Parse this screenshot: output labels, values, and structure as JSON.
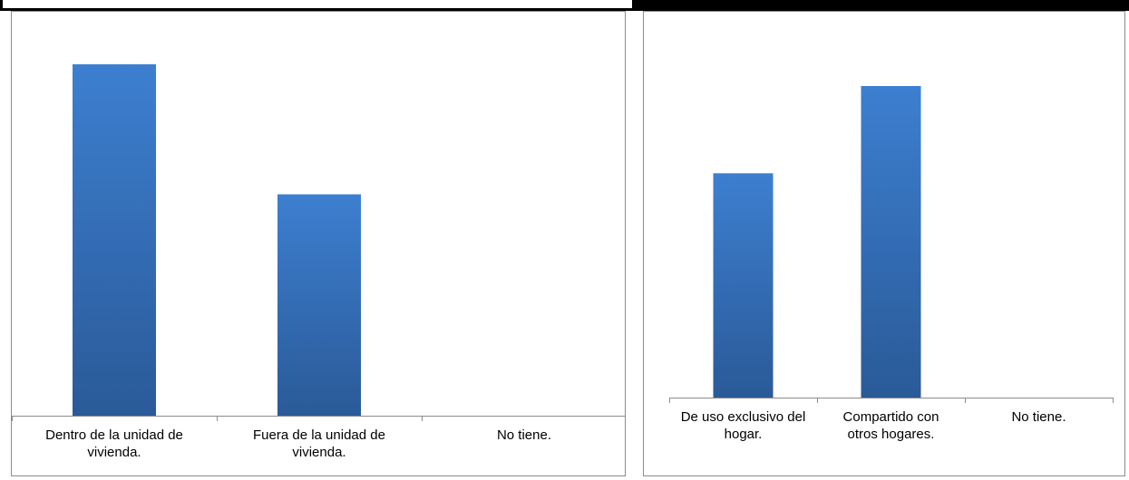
{
  "colors": {
    "bar_top": "#3d7fd0",
    "bar_bottom": "#2a5a98",
    "axis": "#8c8c8c"
  },
  "chart_data": [
    {
      "type": "bar",
      "categories": [
        [
          "Dentro de la unidad de",
          "vivienda."
        ],
        [
          "Fuera de la unidad de",
          "vivienda."
        ],
        [
          "No tiene."
        ]
      ],
      "values": [
        100,
        63,
        0
      ],
      "ylim": [
        0,
        100
      ],
      "grid": false,
      "legend": "none"
    },
    {
      "type": "bar",
      "categories": [
        [
          "De uso exclusivo del",
          "hogar."
        ],
        [
          "Compartido con",
          "otros hogares."
        ],
        [
          "No tiene."
        ]
      ],
      "values": [
        72,
        100,
        0
      ],
      "ylim": [
        0,
        100
      ],
      "grid": false,
      "legend": "none"
    }
  ]
}
